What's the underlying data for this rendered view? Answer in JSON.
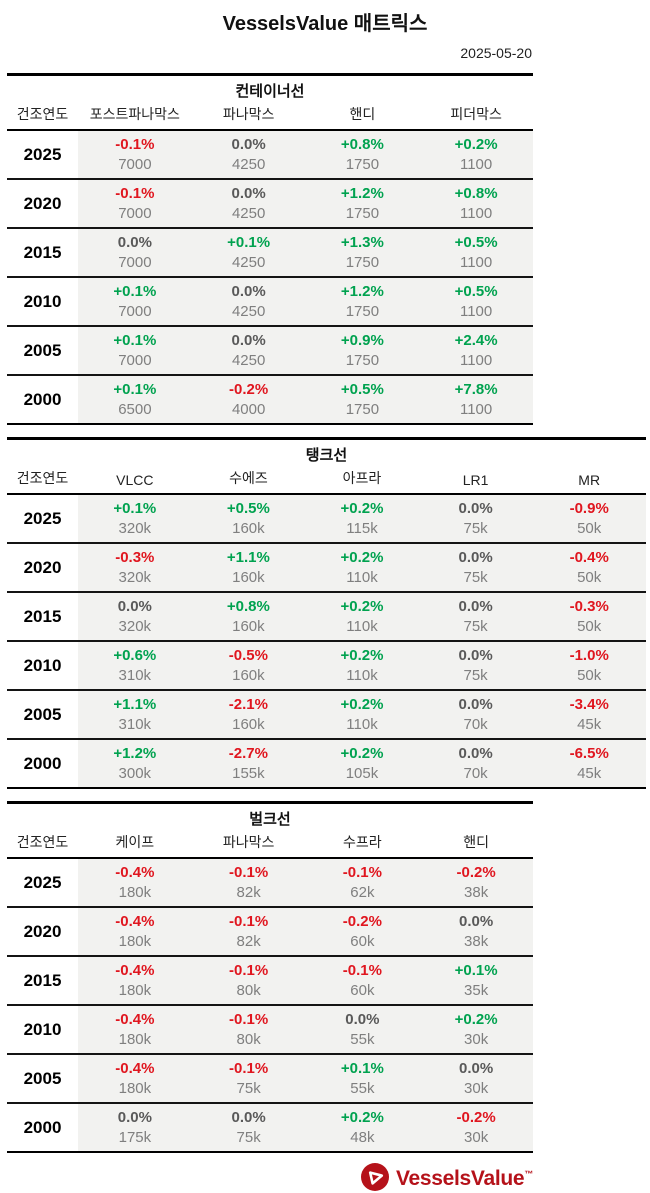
{
  "header": {
    "title": "VesselsValue 매트릭스",
    "date": "2025-05-20"
  },
  "year_col_label": "건조연도",
  "colors": {
    "up": "#00a24f",
    "down": "#e0161f",
    "flat": "#595959",
    "row_bg": "#f2f2f0",
    "brand_red": "#b5121a"
  },
  "sections": [
    {
      "title": "컨테이너선",
      "columns": [
        "포스트파나막스",
        "파나막스",
        "핸디",
        "피더막스"
      ],
      "rows": [
        {
          "year": "2025",
          "cells": [
            {
              "pct": "-0.1%",
              "dir": "down",
              "val": "7000"
            },
            {
              "pct": "0.0%",
              "dir": "flat",
              "val": "4250"
            },
            {
              "pct": "+0.8%",
              "dir": "up",
              "val": "1750"
            },
            {
              "pct": "+0.2%",
              "dir": "up",
              "val": "1100"
            }
          ]
        },
        {
          "year": "2020",
          "cells": [
            {
              "pct": "-0.1%",
              "dir": "down",
              "val": "7000"
            },
            {
              "pct": "0.0%",
              "dir": "flat",
              "val": "4250"
            },
            {
              "pct": "+1.2%",
              "dir": "up",
              "val": "1750"
            },
            {
              "pct": "+0.8%",
              "dir": "up",
              "val": "1100"
            }
          ]
        },
        {
          "year": "2015",
          "cells": [
            {
              "pct": "0.0%",
              "dir": "flat",
              "val": "7000"
            },
            {
              "pct": "+0.1%",
              "dir": "up",
              "val": "4250"
            },
            {
              "pct": "+1.3%",
              "dir": "up",
              "val": "1750"
            },
            {
              "pct": "+0.5%",
              "dir": "up",
              "val": "1100"
            }
          ]
        },
        {
          "year": "2010",
          "cells": [
            {
              "pct": "+0.1%",
              "dir": "up",
              "val": "7000"
            },
            {
              "pct": "0.0%",
              "dir": "flat",
              "val": "4250"
            },
            {
              "pct": "+1.2%",
              "dir": "up",
              "val": "1750"
            },
            {
              "pct": "+0.5%",
              "dir": "up",
              "val": "1100"
            }
          ]
        },
        {
          "year": "2005",
          "cells": [
            {
              "pct": "+0.1%",
              "dir": "up",
              "val": "7000"
            },
            {
              "pct": "0.0%",
              "dir": "flat",
              "val": "4250"
            },
            {
              "pct": "+0.9%",
              "dir": "up",
              "val": "1750"
            },
            {
              "pct": "+2.4%",
              "dir": "up",
              "val": "1100"
            }
          ]
        },
        {
          "year": "2000",
          "cells": [
            {
              "pct": "+0.1%",
              "dir": "up",
              "val": "6500"
            },
            {
              "pct": "-0.2%",
              "dir": "down",
              "val": "4000"
            },
            {
              "pct": "+0.5%",
              "dir": "up",
              "val": "1750"
            },
            {
              "pct": "+7.8%",
              "dir": "up",
              "val": "1100"
            }
          ]
        }
      ]
    },
    {
      "title": "탱크선",
      "columns": [
        "VLCC",
        "수에즈",
        "아프라",
        "LR1",
        "MR"
      ],
      "rows": [
        {
          "year": "2025",
          "cells": [
            {
              "pct": "+0.1%",
              "dir": "up",
              "val": "320k"
            },
            {
              "pct": "+0.5%",
              "dir": "up",
              "val": "160k"
            },
            {
              "pct": "+0.2%",
              "dir": "up",
              "val": "115k"
            },
            {
              "pct": "0.0%",
              "dir": "flat",
              "val": "75k"
            },
            {
              "pct": "-0.9%",
              "dir": "down",
              "val": "50k"
            }
          ]
        },
        {
          "year": "2020",
          "cells": [
            {
              "pct": "-0.3%",
              "dir": "down",
              "val": "320k"
            },
            {
              "pct": "+1.1%",
              "dir": "up",
              "val": "160k"
            },
            {
              "pct": "+0.2%",
              "dir": "up",
              "val": "110k"
            },
            {
              "pct": "0.0%",
              "dir": "flat",
              "val": "75k"
            },
            {
              "pct": "-0.4%",
              "dir": "down",
              "val": "50k"
            }
          ]
        },
        {
          "year": "2015",
          "cells": [
            {
              "pct": "0.0%",
              "dir": "flat",
              "val": "320k"
            },
            {
              "pct": "+0.8%",
              "dir": "up",
              "val": "160k"
            },
            {
              "pct": "+0.2%",
              "dir": "up",
              "val": "110k"
            },
            {
              "pct": "0.0%",
              "dir": "flat",
              "val": "75k"
            },
            {
              "pct": "-0.3%",
              "dir": "down",
              "val": "50k"
            }
          ]
        },
        {
          "year": "2010",
          "cells": [
            {
              "pct": "+0.6%",
              "dir": "up",
              "val": "310k"
            },
            {
              "pct": "-0.5%",
              "dir": "down",
              "val": "160k"
            },
            {
              "pct": "+0.2%",
              "dir": "up",
              "val": "110k"
            },
            {
              "pct": "0.0%",
              "dir": "flat",
              "val": "75k"
            },
            {
              "pct": "-1.0%",
              "dir": "down",
              "val": "50k"
            }
          ]
        },
        {
          "year": "2005",
          "cells": [
            {
              "pct": "+1.1%",
              "dir": "up",
              "val": "310k"
            },
            {
              "pct": "-2.1%",
              "dir": "down",
              "val": "160k"
            },
            {
              "pct": "+0.2%",
              "dir": "up",
              "val": "110k"
            },
            {
              "pct": "0.0%",
              "dir": "flat",
              "val": "70k"
            },
            {
              "pct": "-3.4%",
              "dir": "down",
              "val": "45k"
            }
          ]
        },
        {
          "year": "2000",
          "cells": [
            {
              "pct": "+1.2%",
              "dir": "up",
              "val": "300k"
            },
            {
              "pct": "-2.7%",
              "dir": "down",
              "val": "155k"
            },
            {
              "pct": "+0.2%",
              "dir": "up",
              "val": "105k"
            },
            {
              "pct": "0.0%",
              "dir": "flat",
              "val": "70k"
            },
            {
              "pct": "-6.5%",
              "dir": "down",
              "val": "45k"
            }
          ]
        }
      ]
    },
    {
      "title": "벌크선",
      "columns": [
        "케이프",
        "파나막스",
        "수프라",
        "핸디"
      ],
      "rows": [
        {
          "year": "2025",
          "cells": [
            {
              "pct": "-0.4%",
              "dir": "down",
              "val": "180k"
            },
            {
              "pct": "-0.1%",
              "dir": "down",
              "val": "82k"
            },
            {
              "pct": "-0.1%",
              "dir": "down",
              "val": "62k"
            },
            {
              "pct": "-0.2%",
              "dir": "down",
              "val": "38k"
            }
          ]
        },
        {
          "year": "2020",
          "cells": [
            {
              "pct": "-0.4%",
              "dir": "down",
              "val": "180k"
            },
            {
              "pct": "-0.1%",
              "dir": "down",
              "val": "82k"
            },
            {
              "pct": "-0.2%",
              "dir": "down",
              "val": "60k"
            },
            {
              "pct": "0.0%",
              "dir": "flat",
              "val": "38k"
            }
          ]
        },
        {
          "year": "2015",
          "cells": [
            {
              "pct": "-0.4%",
              "dir": "down",
              "val": "180k"
            },
            {
              "pct": "-0.1%",
              "dir": "down",
              "val": "80k"
            },
            {
              "pct": "-0.1%",
              "dir": "down",
              "val": "60k"
            },
            {
              "pct": "+0.1%",
              "dir": "up",
              "val": "35k"
            }
          ]
        },
        {
          "year": "2010",
          "cells": [
            {
              "pct": "-0.4%",
              "dir": "down",
              "val": "180k"
            },
            {
              "pct": "-0.1%",
              "dir": "down",
              "val": "80k"
            },
            {
              "pct": "0.0%",
              "dir": "flat",
              "val": "55k"
            },
            {
              "pct": "+0.2%",
              "dir": "up",
              "val": "30k"
            }
          ]
        },
        {
          "year": "2005",
          "cells": [
            {
              "pct": "-0.4%",
              "dir": "down",
              "val": "180k"
            },
            {
              "pct": "-0.1%",
              "dir": "down",
              "val": "75k"
            },
            {
              "pct": "+0.1%",
              "dir": "up",
              "val": "55k"
            },
            {
              "pct": "0.0%",
              "dir": "flat",
              "val": "30k"
            }
          ]
        },
        {
          "year": "2000",
          "cells": [
            {
              "pct": "0.0%",
              "dir": "flat",
              "val": "175k"
            },
            {
              "pct": "0.0%",
              "dir": "flat",
              "val": "75k"
            },
            {
              "pct": "+0.2%",
              "dir": "up",
              "val": "48k"
            },
            {
              "pct": "-0.2%",
              "dir": "down",
              "val": "30k"
            }
          ]
        }
      ]
    }
  ],
  "footer": {
    "brand": "VesselsValue",
    "tm": "™"
  }
}
